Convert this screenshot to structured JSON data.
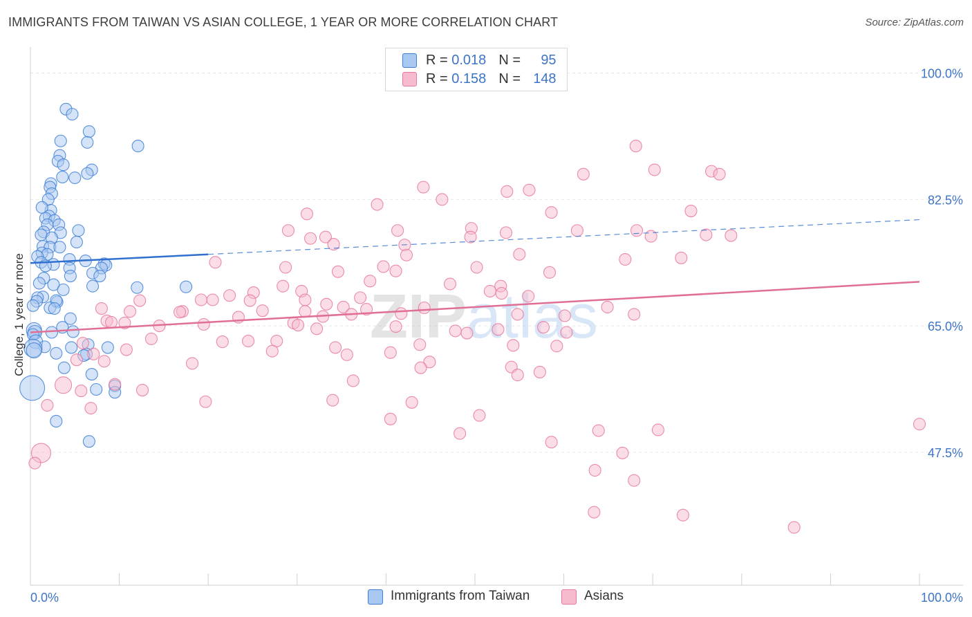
{
  "title": "IMMIGRANTS FROM TAIWAN VS ASIAN COLLEGE, 1 YEAR OR MORE CORRELATION CHART",
  "source": "Source: ZipAtlas.com",
  "watermark": "ZIPatlas",
  "colors": {
    "blue_fill": "#a9c8ef",
    "blue_stroke": "#3d7fd6",
    "blue_line": "#2f6fcf",
    "pink_fill": "#f6bccd",
    "pink_stroke": "#e8789c",
    "pink_line": "#e16e95",
    "accent_text": "#3d74c6"
  },
  "legend": {
    "rows": [
      {
        "r_label": "R =",
        "r_value": "0.018",
        "n_label": "N =",
        "n_value": "95"
      },
      {
        "r_label": "R =",
        "r_value": "0.158",
        "n_label": "N =",
        "n_value": "148"
      }
    ]
  },
  "chart_data": {
    "type": "scatter",
    "title": "IMMIGRANTS FROM TAIWAN VS ASIAN COLLEGE, 1 YEAR OR MORE CORRELATION CHART",
    "xlabel": "",
    "ylabel": "College, 1 year or more",
    "xlim": [
      0,
      100
    ],
    "ylim": [
      29.1,
      103.6
    ],
    "x_tick_labels": [
      "0.0%",
      "100.0%"
    ],
    "y_ticks": [
      47.5,
      65.0,
      82.5,
      100.0
    ],
    "y_tick_labels": [
      "47.5%",
      "65.0%",
      "82.5%",
      "100.0%"
    ],
    "grid": true,
    "series": [
      {
        "name": "Immigrants from Taiwan",
        "color": "#3d7fd6",
        "R": 0.018,
        "N": 95,
        "trend": {
          "x": [
            0,
            20
          ],
          "y": [
            73.7,
            74.9
          ],
          "dashed_to": [
            100,
            79.7
          ]
        },
        "points": [
          [
            4.0,
            95.0
          ],
          [
            4.7,
            94.3
          ],
          [
            6.6,
            91.9
          ],
          [
            6.4,
            90.4
          ],
          [
            12.1,
            89.9
          ],
          [
            3.4,
            90.6
          ],
          [
            3.3,
            88.6
          ],
          [
            3.1,
            87.8
          ],
          [
            3.7,
            87.3
          ],
          [
            6.9,
            86.6
          ],
          [
            6.4,
            86.1
          ],
          [
            3.6,
            85.6
          ],
          [
            5.0,
            85.5
          ],
          [
            2.3,
            84.7
          ],
          [
            2.2,
            84.2
          ],
          [
            2.4,
            83.3
          ],
          [
            2.0,
            82.5
          ],
          [
            2.3,
            81.0
          ],
          [
            1.3,
            81.4
          ],
          [
            2.1,
            80.2
          ],
          [
            1.7,
            79.9
          ],
          [
            2.7,
            79.6
          ],
          [
            1.9,
            79.0
          ],
          [
            3.2,
            79.0
          ],
          [
            5.4,
            78.2
          ],
          [
            1.5,
            78.0
          ],
          [
            3.4,
            77.9
          ],
          [
            1.2,
            77.6
          ],
          [
            2.4,
            77.2
          ],
          [
            5.2,
            76.6
          ],
          [
            1.4,
            76.0
          ],
          [
            2.2,
            75.9
          ],
          [
            3.3,
            75.9
          ],
          [
            1.3,
            75.1
          ],
          [
            1.9,
            74.9
          ],
          [
            0.8,
            74.6
          ],
          [
            4.4,
            74.2
          ],
          [
            6.2,
            74.0
          ],
          [
            1.2,
            73.8
          ],
          [
            2.6,
            73.5
          ],
          [
            8.3,
            73.6
          ],
          [
            8.5,
            73.4
          ],
          [
            1.7,
            73.3
          ],
          [
            4.4,
            73.0
          ],
          [
            8.0,
            73.0
          ],
          [
            7.0,
            72.3
          ],
          [
            4.5,
            71.9
          ],
          [
            1.5,
            71.6
          ],
          [
            7.8,
            71.9
          ],
          [
            12.0,
            70.3
          ],
          [
            1.0,
            70.9
          ],
          [
            2.6,
            70.7
          ],
          [
            7.0,
            70.5
          ],
          [
            3.7,
            70.0
          ],
          [
            17.5,
            70.4
          ],
          [
            1.4,
            69.0
          ],
          [
            0.8,
            68.9
          ],
          [
            0.7,
            68.4
          ],
          [
            3.0,
            68.3
          ],
          [
            2.9,
            68.5
          ],
          [
            2.2,
            67.5
          ],
          [
            0.3,
            67.8
          ],
          [
            2.7,
            67.4
          ],
          [
            4.5,
            66.0
          ],
          [
            3.6,
            64.8
          ],
          [
            0.4,
            64.4
          ],
          [
            0.5,
            64.1
          ],
          [
            2.4,
            64.1
          ],
          [
            4.8,
            64.2
          ],
          [
            0.3,
            63.8
          ],
          [
            0.6,
            62.8
          ],
          [
            1.6,
            62.1
          ],
          [
            4.6,
            62.0
          ],
          [
            6.5,
            62.4
          ],
          [
            8.7,
            62.0
          ],
          [
            0.3,
            61.9
          ],
          [
            0.4,
            61.6
          ],
          [
            2.9,
            61.2
          ],
          [
            6.3,
            61.1
          ],
          [
            6.0,
            60.9
          ],
          [
            3.8,
            59.2
          ],
          [
            6.9,
            58.3
          ],
          [
            9.5,
            56.7
          ],
          [
            9.5,
            55.8
          ],
          [
            7.4,
            56.2
          ],
          [
            0.2,
            56.4
          ],
          [
            2.9,
            51.8
          ],
          [
            6.6,
            49.0
          ]
        ]
      },
      {
        "name": "Asians",
        "color": "#e8789c",
        "R": 0.158,
        "N": 148,
        "trend": {
          "x": [
            0,
            100
          ],
          "y": [
            64.1,
            71.1
          ]
        },
        "points": [
          [
            68.1,
            89.9
          ],
          [
            70.2,
            86.6
          ],
          [
            62.2,
            86.0
          ],
          [
            76.6,
            86.4
          ],
          [
            77.5,
            86.0
          ],
          [
            44.2,
            84.2
          ],
          [
            53.6,
            83.6
          ],
          [
            56.1,
            83.8
          ],
          [
            46.3,
            82.5
          ],
          [
            39.0,
            81.8
          ],
          [
            31.1,
            80.5
          ],
          [
            74.3,
            80.9
          ],
          [
            58.6,
            80.7
          ],
          [
            29.0,
            78.2
          ],
          [
            41.3,
            78.2
          ],
          [
            49.6,
            78.5
          ],
          [
            61.5,
            78.2
          ],
          [
            68.2,
            78.2
          ],
          [
            69.8,
            77.4
          ],
          [
            53.5,
            77.9
          ],
          [
            31.5,
            77.1
          ],
          [
            76.0,
            77.6
          ],
          [
            78.8,
            77.5
          ],
          [
            49.5,
            77.3
          ],
          [
            33.2,
            77.3
          ],
          [
            42.1,
            76.2
          ],
          [
            34.1,
            76.3
          ],
          [
            42.3,
            74.8
          ],
          [
            55.0,
            74.9
          ],
          [
            66.9,
            74.2
          ],
          [
            73.2,
            74.4
          ],
          [
            20.8,
            73.8
          ],
          [
            39.7,
            73.2
          ],
          [
            50.2,
            73.1
          ],
          [
            28.7,
            73.1
          ],
          [
            34.6,
            72.5
          ],
          [
            41.1,
            72.6
          ],
          [
            58.4,
            72.4
          ],
          [
            38.2,
            71.2
          ],
          [
            28.4,
            70.5
          ],
          [
            52.9,
            70.5
          ],
          [
            47.2,
            70.8
          ],
          [
            51.7,
            69.8
          ],
          [
            53.0,
            69.5
          ],
          [
            25.1,
            69.6
          ],
          [
            30.5,
            69.8
          ],
          [
            22.4,
            69.2
          ],
          [
            56.0,
            69.1
          ],
          [
            37.1,
            68.9
          ],
          [
            19.2,
            68.6
          ],
          [
            30.9,
            68.6
          ],
          [
            12.3,
            68.5
          ],
          [
            20.5,
            68.6
          ],
          [
            24.7,
            68.5
          ],
          [
            33.3,
            68.0
          ],
          [
            35.2,
            67.6
          ],
          [
            44.3,
            67.5
          ],
          [
            64.9,
            67.6
          ],
          [
            37.8,
            67.3
          ],
          [
            8.0,
            67.4
          ],
          [
            26.1,
            67.1
          ],
          [
            30.9,
            67.0
          ],
          [
            17.1,
            67.0
          ],
          [
            54.8,
            66.6
          ],
          [
            11.2,
            67.0
          ],
          [
            16.8,
            66.9
          ],
          [
            41.7,
            66.7
          ],
          [
            36.1,
            66.6
          ],
          [
            60.1,
            66.4
          ],
          [
            67.9,
            66.6
          ],
          [
            32.9,
            66.3
          ],
          [
            23.4,
            66.2
          ],
          [
            8.6,
            65.7
          ],
          [
            29.6,
            65.4
          ],
          [
            19.5,
            65.2
          ],
          [
            30.1,
            65.1
          ],
          [
            41.1,
            64.9
          ],
          [
            57.7,
            64.8
          ],
          [
            52.6,
            64.5
          ],
          [
            10.6,
            65.4
          ],
          [
            14.5,
            65.0
          ],
          [
            9.1,
            65.5
          ],
          [
            32.2,
            64.6
          ],
          [
            47.8,
            64.3
          ],
          [
            49.1,
            64.0
          ],
          [
            60.3,
            64.1
          ],
          [
            13.6,
            63.2
          ],
          [
            21.6,
            62.8
          ],
          [
            27.7,
            62.9
          ],
          [
            24.5,
            62.9
          ],
          [
            5.9,
            62.6
          ],
          [
            43.8,
            62.4
          ],
          [
            54.3,
            62.3
          ],
          [
            59.2,
            62.2
          ],
          [
            34.3,
            62.0
          ],
          [
            7.1,
            61.1
          ],
          [
            10.8,
            61.7
          ],
          [
            27.2,
            61.5
          ],
          [
            35.6,
            61.0
          ],
          [
            40.5,
            61.3
          ],
          [
            5.2,
            60.3
          ],
          [
            8.3,
            60.1
          ],
          [
            44.9,
            60.0
          ],
          [
            54.1,
            59.3
          ],
          [
            18.2,
            59.8
          ],
          [
            43.9,
            59.2
          ],
          [
            57.3,
            58.6
          ],
          [
            54.8,
            58.2
          ],
          [
            36.3,
            57.4
          ],
          [
            3.7,
            56.8
          ],
          [
            9.5,
            56.9
          ],
          [
            5.7,
            56.0
          ],
          [
            12.6,
            56.1
          ],
          [
            19.7,
            54.5
          ],
          [
            34.0,
            54.7
          ],
          [
            42.9,
            54.4
          ],
          [
            1.9,
            54.0
          ],
          [
            6.8,
            53.6
          ],
          [
            40.5,
            52.1
          ],
          [
            50.5,
            52.6
          ],
          [
            48.3,
            50.1
          ],
          [
            63.9,
            50.5
          ],
          [
            70.6,
            50.6
          ],
          [
            100.0,
            51.4
          ],
          [
            58.6,
            48.9
          ],
          [
            66.6,
            47.4
          ],
          [
            1.2,
            47.4
          ],
          [
            0.5,
            46.0
          ],
          [
            63.5,
            45.0
          ],
          [
            67.9,
            43.6
          ],
          [
            63.4,
            39.2
          ],
          [
            73.4,
            38.8
          ],
          [
            85.9,
            37.1
          ]
        ]
      }
    ]
  },
  "bottom_legend": [
    {
      "label": "Immigrants from Taiwan"
    },
    {
      "label": "Asians"
    }
  ]
}
